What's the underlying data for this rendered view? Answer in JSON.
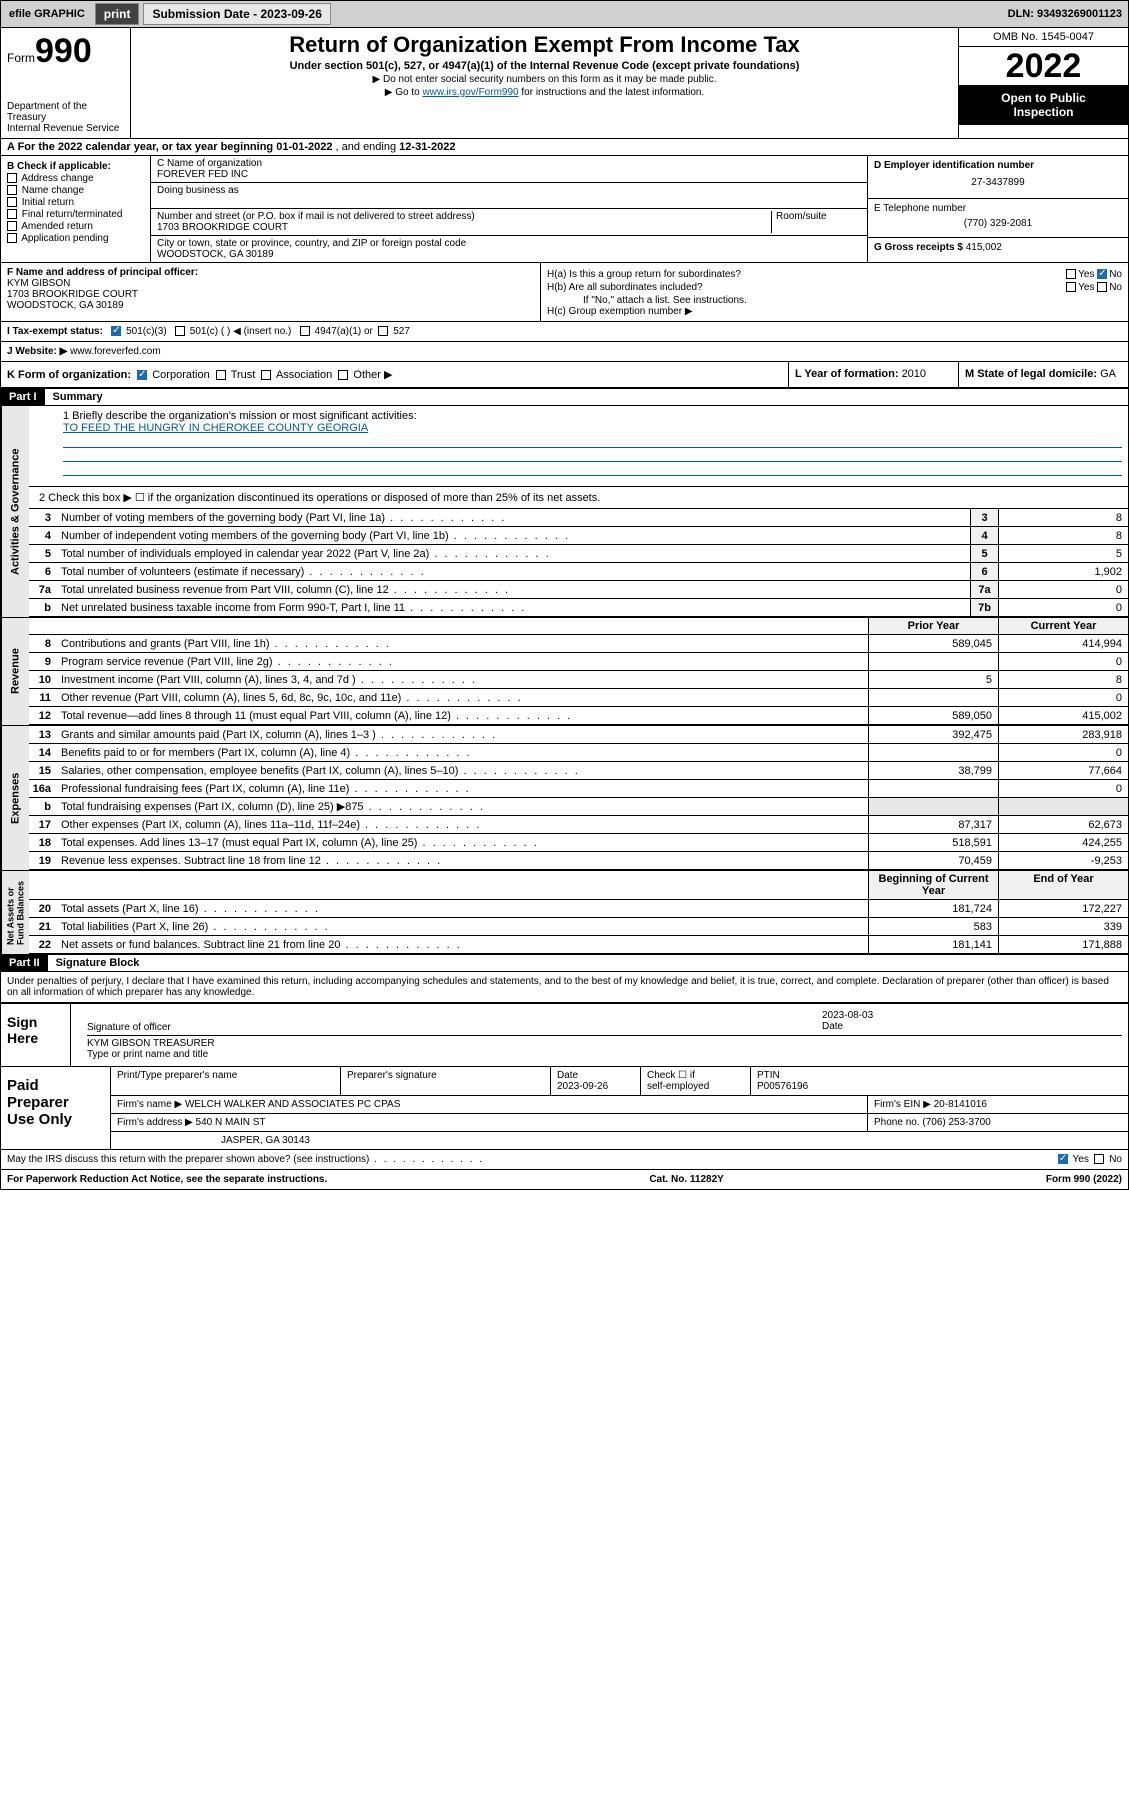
{
  "topbar": {
    "efile": "efile GRAPHIC",
    "print": "print",
    "sub_label": "Submission Date - ",
    "sub_date": "2023-09-26",
    "dln": "DLN: 93493269001123"
  },
  "header": {
    "form_word": "Form",
    "form_num": "990",
    "dept": "Department of the Treasury\nInternal Revenue Service",
    "title": "Return of Organization Exempt From Income Tax",
    "sub": "Under section 501(c), 527, or 4947(a)(1) of the Internal Revenue Code (except private foundations)",
    "note1": "▶ Do not enter social security numbers on this form as it may be made public.",
    "note2_a": "▶ Go to ",
    "note2_link": "www.irs.gov/Form990",
    "note2_b": " for instructions and the latest information.",
    "omb": "OMB No. 1545-0047",
    "year": "2022",
    "openpub": "Open to Public\nInspection"
  },
  "lineA": {
    "pre": "A For the 2022 calendar year, or tax year beginning ",
    "begin": "01-01-2022",
    "mid": " , and ending ",
    "end": "12-31-2022"
  },
  "colB": {
    "hdr": "B Check if applicable:",
    "items": [
      "Address change",
      "Name change",
      "Initial return",
      "Final return/terminated",
      "Amended return",
      "Application pending"
    ]
  },
  "colC": {
    "name_lbl": "C Name of organization",
    "name": "FOREVER FED INC",
    "dba_lbl": "Doing business as",
    "addr_lbl": "Number and street (or P.O. box if mail is not delivered to street address)",
    "room_lbl": "Room/suite",
    "addr": "1703 BROOKRIDGE COURT",
    "city_lbl": "City or town, state or province, country, and ZIP or foreign postal code",
    "city": "WOODSTOCK, GA  30189"
  },
  "colD": {
    "d_lbl": "D Employer identification number",
    "d_val": "27-3437899",
    "e_lbl": "E Telephone number",
    "e_val": "(770) 329-2081",
    "g_lbl": "G Gross receipts $ ",
    "g_val": "415,002"
  },
  "colF": {
    "lbl": "F Name and address of principal officer:",
    "name": "KYM GIBSON",
    "addr1": "1703 BROOKRIDGE COURT",
    "addr2": "WOODSTOCK, GA  30189"
  },
  "colH": {
    "ha": "H(a)  Is this a group return for subordinates?",
    "hb": "H(b)  Are all subordinates included?",
    "hb_note": "If \"No,\" attach a list. See instructions.",
    "hc": "H(c)  Group exemption number ▶",
    "yes": "Yes",
    "no": "No"
  },
  "rowI": {
    "lbl": "I    Tax-exempt status:",
    "o1": "501(c)(3)",
    "o2": "501(c) (  ) ◀ (insert no.)",
    "o3": "4947(a)(1) or",
    "o4": "527"
  },
  "rowJ": {
    "lbl": "J   Website: ▶ ",
    "val": "www.foreverfed.com"
  },
  "rowK": {
    "lbl": "K Form of organization:",
    "o1": "Corporation",
    "o2": "Trust",
    "o3": "Association",
    "o4": "Other ▶"
  },
  "rowL": {
    "lbl": "L Year of formation: ",
    "val": "2010"
  },
  "rowM": {
    "lbl": "M State of legal domicile: ",
    "val": "GA"
  },
  "part1": {
    "hdr": "Part I",
    "title": "Summary"
  },
  "sidebars": {
    "s1": "Activities & Governance",
    "s2": "Revenue",
    "s3": "Expenses",
    "s4": "Net Assets or\nFund Balances"
  },
  "mission": {
    "lbl": "1   Briefly describe the organization's mission or most significant activities:",
    "txt": "TO FEED THE HUNGRY IN CHEROKEE COUNTY GEORGIA"
  },
  "line2": "2   Check this box ▶ ☐  if the organization discontinued its operations or disposed of more than 25% of its net assets.",
  "gov_lines": [
    {
      "n": "3",
      "d": "Number of voting members of the governing body (Part VI, line 1a)",
      "box": "3",
      "v": "8"
    },
    {
      "n": "4",
      "d": "Number of independent voting members of the governing body (Part VI, line 1b)",
      "box": "4",
      "v": "8"
    },
    {
      "n": "5",
      "d": "Total number of individuals employed in calendar year 2022 (Part V, line 2a)",
      "box": "5",
      "v": "5"
    },
    {
      "n": "6",
      "d": "Total number of volunteers (estimate if necessary)",
      "box": "6",
      "v": "1,902"
    },
    {
      "n": "7a",
      "d": "Total unrelated business revenue from Part VIII, column (C), line 12",
      "box": "7a",
      "v": "0"
    },
    {
      "n": "b",
      "d": "Net unrelated business taxable income from Form 990-T, Part I, line 11",
      "box": "7b",
      "v": "0"
    }
  ],
  "col_hdrs": {
    "prior": "Prior Year",
    "curr": "Current Year",
    "beg": "Beginning of Current Year",
    "end": "End of Year"
  },
  "rev_lines": [
    {
      "n": "8",
      "d": "Contributions and grants (Part VIII, line 1h)",
      "p": "589,045",
      "c": "414,994"
    },
    {
      "n": "9",
      "d": "Program service revenue (Part VIII, line 2g)",
      "p": "",
      "c": "0"
    },
    {
      "n": "10",
      "d": "Investment income (Part VIII, column (A), lines 3, 4, and 7d )",
      "p": "5",
      "c": "8"
    },
    {
      "n": "11",
      "d": "Other revenue (Part VIII, column (A), lines 5, 6d, 8c, 9c, 10c, and 11e)",
      "p": "",
      "c": "0"
    },
    {
      "n": "12",
      "d": "Total revenue—add lines 8 through 11 (must equal Part VIII, column (A), line 12)",
      "p": "589,050",
      "c": "415,002"
    }
  ],
  "exp_lines": [
    {
      "n": "13",
      "d": "Grants and similar amounts paid (Part IX, column (A), lines 1–3 )",
      "p": "392,475",
      "c": "283,918"
    },
    {
      "n": "14",
      "d": "Benefits paid to or for members (Part IX, column (A), line 4)",
      "p": "",
      "c": "0"
    },
    {
      "n": "15",
      "d": "Salaries, other compensation, employee benefits (Part IX, column (A), lines 5–10)",
      "p": "38,799",
      "c": "77,664"
    },
    {
      "n": "16a",
      "d": "Professional fundraising fees (Part IX, column (A), line 11e)",
      "p": "",
      "c": "0"
    },
    {
      "n": "b",
      "d": "Total fundraising expenses (Part IX, column (D), line 25) ▶875",
      "p": null,
      "c": null
    },
    {
      "n": "17",
      "d": "Other expenses (Part IX, column (A), lines 11a–11d, 11f–24e)",
      "p": "87,317",
      "c": "62,673"
    },
    {
      "n": "18",
      "d": "Total expenses. Add lines 13–17 (must equal Part IX, column (A), line 25)",
      "p": "518,591",
      "c": "424,255"
    },
    {
      "n": "19",
      "d": "Revenue less expenses. Subtract line 18 from line 12",
      "p": "70,459",
      "c": "-9,253"
    }
  ],
  "net_lines": [
    {
      "n": "20",
      "d": "Total assets (Part X, line 16)",
      "p": "181,724",
      "c": "172,227"
    },
    {
      "n": "21",
      "d": "Total liabilities (Part X, line 26)",
      "p": "583",
      "c": "339"
    },
    {
      "n": "22",
      "d": "Net assets or fund balances. Subtract line 21 from line 20",
      "p": "181,141",
      "c": "171,888"
    }
  ],
  "part2": {
    "hdr": "Part II",
    "title": "Signature Block"
  },
  "decl": "Under penalties of perjury, I declare that I have examined this return, including accompanying schedules and statements, and to the best of my knowledge and belief, it is true, correct, and complete. Declaration of preparer (other than officer) is based on all information of which preparer has any knowledge.",
  "sign": {
    "lbl": "Sign\nHere",
    "sig_of": "Signature of officer",
    "date_lbl": "Date",
    "date": "2023-08-03",
    "name": "KYM GIBSON  TREASURER",
    "name_lbl": "Type or print name and title"
  },
  "prep": {
    "lbl": "Paid\nPreparer\nUse Only",
    "h1": "Print/Type preparer's name",
    "h2": "Preparer's signature",
    "h3": "Date",
    "h3v": "2023-09-26",
    "h4a": "Check ☐ if",
    "h4b": "self-employed",
    "h5": "PTIN",
    "h5v": "P00576196",
    "firm_lbl": "Firm's name    ▶ ",
    "firm": "WELCH WALKER AND ASSOCIATES PC CPAS",
    "ein_lbl": "Firm's EIN ▶ ",
    "ein": "20-8141016",
    "addr_lbl": "Firm's address ▶ ",
    "addr1": "540 N MAIN ST",
    "addr2": "JASPER, GA  30143",
    "phone_lbl": "Phone no. ",
    "phone": "(706) 253-3700"
  },
  "bottom": {
    "q": "May the IRS discuss this return with the preparer shown above? (see instructions)",
    "yes": "Yes",
    "no": "No",
    "pra": "For Paperwork Reduction Act Notice, see the separate instructions.",
    "cat": "Cat. No. 11282Y",
    "form": "Form 990 (2022)"
  },
  "colors": {
    "link": "#005a9c",
    "checked": "#1a6db5",
    "grey": "#e8e8e8"
  }
}
